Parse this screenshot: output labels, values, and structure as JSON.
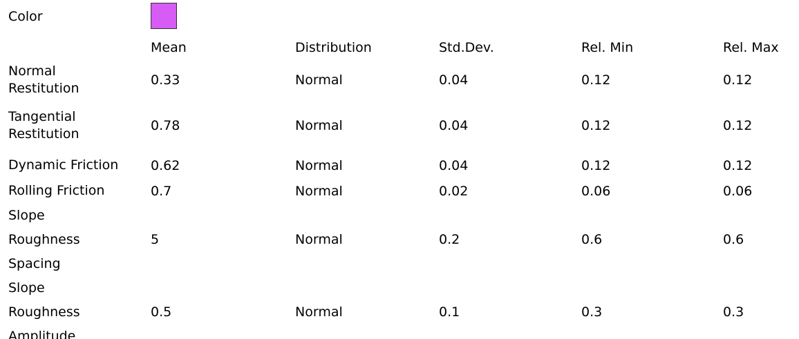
{
  "color_row": {
    "label": "Color",
    "color": "#d65cf5"
  },
  "header": [
    "Mean",
    "Distribution",
    "Std.Dev.",
    "Rel. Min",
    "Rel. Max"
  ],
  "rows": [
    {
      "label": [
        "Normal",
        "Restitution"
      ],
      "cells": [
        "0.33",
        "Normal",
        "0.04",
        "0.12",
        "0.12"
      ]
    },
    {
      "label": [
        "Tangential",
        "Restitution"
      ],
      "cells": [
        "0.78",
        "Normal",
        "0.04",
        "0.12",
        "0.12"
      ]
    },
    {
      "label": [
        "Dynamic Friction"
      ],
      "cells": [
        "0.62",
        "Normal",
        "0.04",
        "0.12",
        "0.12"
      ]
    },
    {
      "label": [
        "Rolling Friction"
      ],
      "cells": [
        "0.7",
        "Normal",
        "0.02",
        "0.06",
        "0.06"
      ]
    },
    {
      "label": [
        "Slope",
        "Roughness",
        "Spacing"
      ],
      "cells": [
        "5",
        "Normal",
        "0.2",
        "0.6",
        "0.6"
      ]
    },
    {
      "label": [
        "Slope",
        "Roughness",
        "Amplitude"
      ],
      "cells": [
        "0.5",
        "Normal",
        "0.1",
        "0.3",
        "0.3"
      ]
    }
  ]
}
